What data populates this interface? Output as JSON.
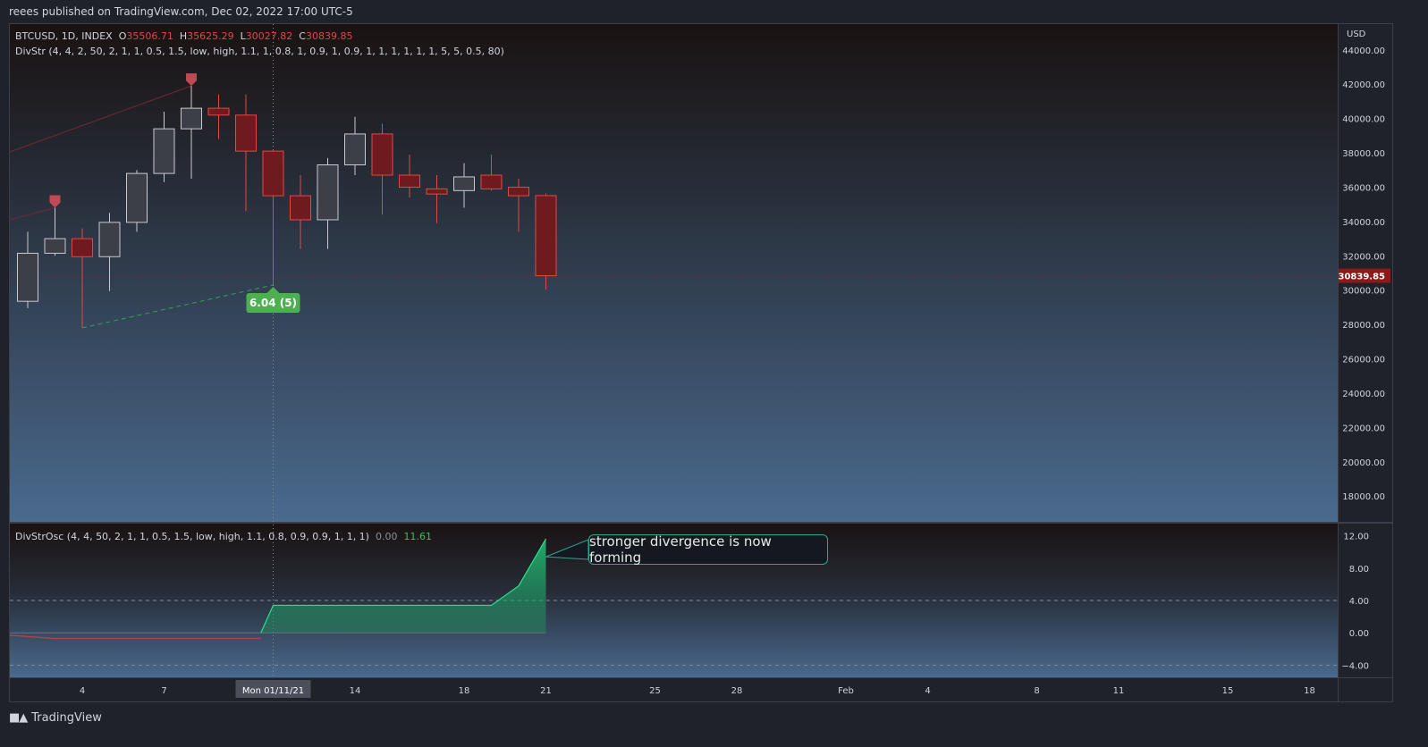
{
  "publisher_line": "reees published on TradingView.com, Dec 02, 2022 17:00 UTC-5",
  "symbol_line": "BTCUSD, 1D, INDEX",
  "ohlc": {
    "o_label": "O",
    "o": "35506.71",
    "h_label": "H",
    "h": "35625.29",
    "l_label": "L",
    "l": "30027.82",
    "c_label": "C",
    "c": "30839.85"
  },
  "indicator_line": "DivStr (4, 4, 2, 50, 2, 1, 1, 0.5, 1.5, low, high, 1.1, 1, 0.8, 1, 0.9, 1, 0.9, 1, 1, 1, 1, 1, 1, 5, 5, 0.5, 80)",
  "osc_line": "DivStrOsc (4, 4, 50, 2, 1, 1, 0.5, 1.5, low, high, 1.1, 0.8, 0.9, 0.9, 1, 1, 1)",
  "osc_values": {
    "v1": "0.00",
    "v2": "11.61"
  },
  "currency": "USD",
  "last_price_label": "30839.85",
  "divergence_label": "6.04 (5)",
  "callout": "stronger divergence is now forming",
  "brand": "TradingView",
  "colors": {
    "up": "#3c3f47",
    "down": "#6e1a1f",
    "down_border": "#e04848",
    "up_border": "#c8cad0",
    "accent_green": "#33c35b",
    "osc_fill": "#22c57a"
  },
  "chart_data": [
    {
      "type": "candlestick",
      "ylim": [
        16500,
        45500
      ],
      "y_ticks": [
        "44000.00",
        "42000.00",
        "40000.00",
        "38000.00",
        "36000.00",
        "34000.00",
        "32000.00",
        "30000.00",
        "28000.00",
        "26000.00",
        "24000.00",
        "22000.00",
        "20000.00",
        "18000.00"
      ],
      "x_ticks": [
        {
          "i": 2,
          "label": "4"
        },
        {
          "i": 5,
          "label": "7"
        },
        {
          "i": 12,
          "label": "14"
        },
        {
          "i": 16,
          "label": "18"
        },
        {
          "i": 19,
          "label": "21"
        },
        {
          "i": 23,
          "label": "25"
        },
        {
          "i": 26,
          "label": "28"
        },
        {
          "i": 30,
          "label": "Feb"
        },
        {
          "i": 33,
          "label": "4"
        },
        {
          "i": 37,
          "label": "8"
        },
        {
          "i": 40,
          "label": "11"
        },
        {
          "i": 44,
          "label": "15"
        },
        {
          "i": 47,
          "label": "18"
        }
      ],
      "crosshair_label": "Mon 01/11/21",
      "crosshair_index": 9,
      "candles": [
        {
          "o": 29350,
          "h": 33400,
          "l": 28950,
          "c": 32150
        },
        {
          "o": 32150,
          "h": 34800,
          "l": 32000,
          "c": 33000
        },
        {
          "o": 33000,
          "h": 33600,
          "l": 27800,
          "c": 31950
        },
        {
          "o": 31950,
          "h": 34500,
          "l": 29950,
          "c": 33950
        },
        {
          "o": 33950,
          "h": 37000,
          "l": 33400,
          "c": 36800
        },
        {
          "o": 36800,
          "h": 40400,
          "l": 36300,
          "c": 39400
        },
        {
          "o": 39400,
          "h": 41900,
          "l": 36500,
          "c": 40600
        },
        {
          "o": 40600,
          "h": 41400,
          "l": 38800,
          "c": 40200
        },
        {
          "o": 40200,
          "h": 41400,
          "l": 34600,
          "c": 38100
        },
        {
          "o": 38100,
          "h": 38200,
          "l": 30300,
          "c": 35500
        },
        {
          "o": 35500,
          "h": 36700,
          "l": 32400,
          "c": 34100
        },
        {
          "o": 34100,
          "h": 37700,
          "l": 32400,
          "c": 37300
        },
        {
          "o": 37300,
          "h": 40100,
          "l": 36700,
          "c": 39100
        },
        {
          "o": 39100,
          "h": 39700,
          "l": 34400,
          "c": 36700
        },
        {
          "o": 36700,
          "h": 37900,
          "l": 35400,
          "c": 36000
        },
        {
          "o": 35900,
          "h": 36700,
          "l": 33900,
          "c": 35600
        },
        {
          "o": 35800,
          "h": 37400,
          "l": 34800,
          "c": 36600
        },
        {
          "o": 36700,
          "h": 37900,
          "l": 35800,
          "c": 35900
        },
        {
          "o": 36000,
          "h": 36500,
          "l": 33400,
          "c": 35500
        },
        {
          "o": 35506.71,
          "h": 35625.29,
          "l": 30027.82,
          "c": 30839.85
        }
      ],
      "top_markers": [
        1,
        6
      ],
      "bottom_marker": 9
    },
    {
      "type": "area",
      "ylim": [
        -5.5,
        13.5
      ],
      "y_ticks": [
        "12.00",
        "8.00",
        "4.00",
        "0.00",
        "−4.00"
      ],
      "dashed_levels": [
        4,
        -4
      ],
      "red_line": [
        -0.3,
        -0.7,
        -0.7,
        -0.7,
        -0.7,
        -0.7,
        -0.7,
        -0.7,
        -0.7
      ],
      "green_area": [
        {
          "i": 8.55,
          "v": 0
        },
        {
          "i": 9,
          "v": 3.4
        },
        {
          "i": 17,
          "v": 3.4
        },
        {
          "i": 18,
          "v": 5.8
        },
        {
          "i": 19,
          "v": 11.61
        }
      ]
    }
  ]
}
